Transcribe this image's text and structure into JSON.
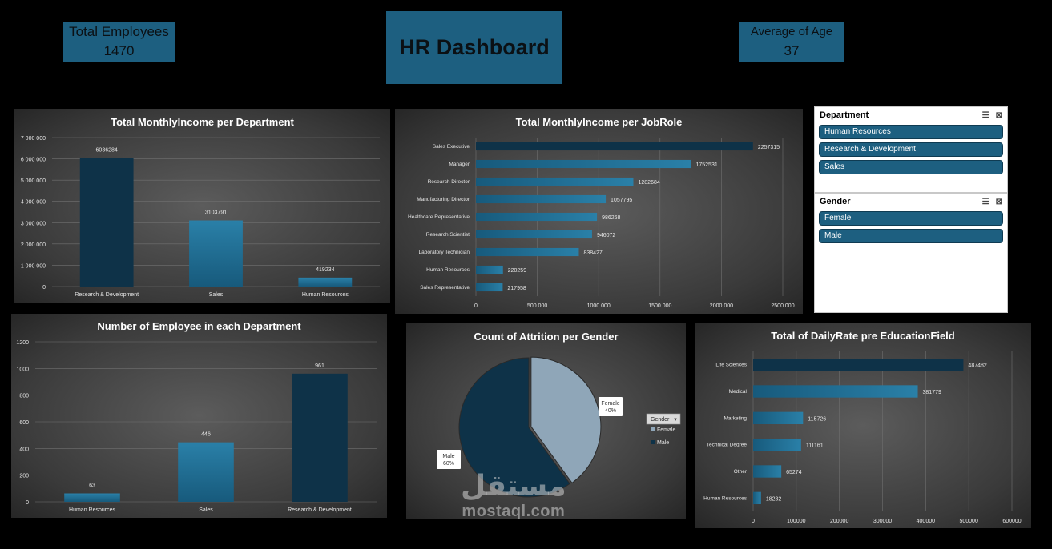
{
  "kpis": {
    "total_employees": {
      "label": "Total Employees",
      "value": "1470"
    },
    "average_age": {
      "label": "Average of Age",
      "value": "37"
    }
  },
  "dashboard_title": "HR Dashboard",
  "colors": {
    "dark_bar": "#0e3248",
    "mid_bar": "#1a6a91",
    "accent": "#1d5f80"
  },
  "slicers": {
    "department": {
      "title": "Department",
      "items": [
        "Human Resources",
        "Research & Development",
        "Sales"
      ]
    },
    "gender": {
      "title": "Gender",
      "items": [
        "Female",
        "Male"
      ]
    }
  },
  "watermark": {
    "arabic": "مستقل",
    "latin": "mostaql.com"
  },
  "chart_data": [
    {
      "id": "income_dept",
      "type": "bar",
      "title": "Total  MonthlyIncome per Department",
      "categories": [
        "Research & Development",
        "Sales",
        "Human Resources"
      ],
      "values": [
        6036284,
        3103791,
        419234
      ],
      "ylim": [
        0,
        7000000
      ],
      "yticks": [
        0,
        1000000,
        2000000,
        3000000,
        4000000,
        5000000,
        6000000,
        7000000
      ],
      "ytick_labels": [
        "0",
        "1 000 000",
        "2 000 000",
        "3 000 000",
        "4 000 000",
        "5 000 000",
        "6 000 000",
        "7 000 000"
      ],
      "grid": true
    },
    {
      "id": "income_role",
      "type": "bar",
      "orientation": "horizontal",
      "title": "Total MonthlyIncome per JobRole",
      "categories": [
        "Sales Executive",
        "Manager",
        "Research Director",
        "Manufacturing Director",
        "Healthcare Representative",
        "Research Scientist",
        "Laboratory Technician",
        "Human Resources",
        "Sales Representative"
      ],
      "values": [
        2257315,
        1752531,
        1282684,
        1057795,
        986268,
        946072,
        838427,
        220259,
        217958
      ],
      "xlim": [
        0,
        2500000
      ],
      "xticks": [
        0,
        500000,
        1000000,
        1500000,
        2000000,
        2500000
      ],
      "xtick_labels": [
        "0",
        "500 000",
        "1000 000",
        "1500 000",
        "2000 000",
        "2500 000"
      ],
      "grid": true
    },
    {
      "id": "emp_dept",
      "type": "bar",
      "title": "Number of Employee in each Department",
      "categories": [
        "Human Resources",
        "Sales",
        "Research & Development"
      ],
      "values": [
        63,
        446,
        961
      ],
      "ylim": [
        0,
        1200
      ],
      "yticks": [
        0,
        200,
        400,
        600,
        800,
        1000,
        1200
      ],
      "ytick_labels": [
        "0",
        "200",
        "400",
        "600",
        "800",
        "1000",
        "1200"
      ],
      "grid": true
    },
    {
      "id": "attrition_gender",
      "type": "pie",
      "title": "Count of Attrition per Gender",
      "slices": [
        {
          "name": "Female",
          "value": 40,
          "label": "40%",
          "color": "#8fa6b8"
        },
        {
          "name": "Male",
          "value": 60,
          "label": "60%",
          "color": "#0e3248"
        }
      ],
      "legend_title": "Gender",
      "legend_position": "right"
    },
    {
      "id": "dailyrate_edu",
      "type": "bar",
      "orientation": "horizontal",
      "title": "Total of DailyRate pre EducationField",
      "categories": [
        "Life Sciences",
        "Medical",
        "Marketing",
        "Technical Degree",
        "Other",
        "Human Resources"
      ],
      "values": [
        487482,
        381779,
        115726,
        111161,
        65274,
        18232
      ],
      "xlim": [
        0,
        600000
      ],
      "xticks": [
        0,
        100000,
        200000,
        300000,
        400000,
        500000,
        600000
      ],
      "xtick_labels": [
        "0",
        "100000",
        "200000",
        "300000",
        "400000",
        "500000",
        "600000"
      ],
      "grid": true
    }
  ]
}
